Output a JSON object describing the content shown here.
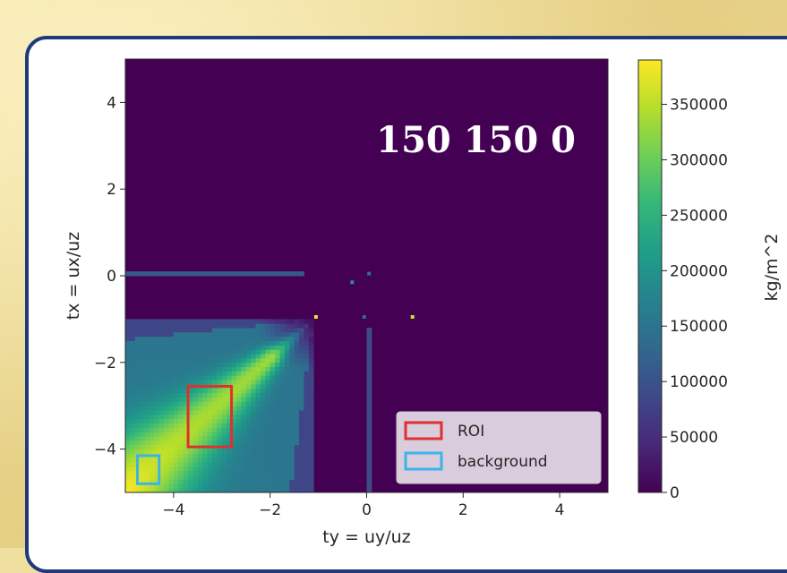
{
  "chart_data": {
    "type": "heatmap",
    "annotation": "150 150 0",
    "xlabel": "ty = uy/uz",
    "ylabel": "tx = ux/uz",
    "xlim": [
      -5,
      5
    ],
    "ylim": [
      -5,
      5
    ],
    "xticks": [
      -4,
      -2,
      0,
      2,
      4
    ],
    "xtick_labels": [
      "−4",
      "−2",
      "0",
      "2",
      "4"
    ],
    "yticks": [
      4,
      2,
      0,
      -2,
      -4
    ],
    "ytick_labels": [
      "4",
      "2",
      "0",
      "−2",
      "−4"
    ],
    "colorbar": {
      "label": "kg/m^2",
      "min": 0,
      "max": 390000,
      "ticks": [
        0,
        50000,
        100000,
        150000,
        200000,
        250000,
        300000,
        350000
      ],
      "tick_labels": [
        "0",
        "50000",
        "100000",
        "150000",
        "200000",
        "250000",
        "300000",
        "350000"
      ],
      "colormap": [
        "#440154",
        "#482878",
        "#3e4989",
        "#31688e",
        "#26828e",
        "#1f9e89",
        "#35b779",
        "#6ece58",
        "#b5de2b",
        "#fde725"
      ]
    },
    "legend": {
      "position": "lower-right",
      "entries": [
        {
          "label": "ROI",
          "color": "#e03030"
        },
        {
          "label": "background",
          "color": "#3db4e8"
        }
      ]
    },
    "roi_box": {
      "x": [
        -3.7,
        -2.8
      ],
      "y": [
        -3.95,
        -2.55
      ]
    },
    "background_box": {
      "x": [
        -4.75,
        -4.3
      ],
      "y": [
        -4.8,
        -4.15
      ]
    },
    "features": {
      "wedge_apex": [
        -1.1,
        -1.0
      ],
      "wedge_peak_value": 330000,
      "corner_peak_value": 370000,
      "line_tx0": {
        "tx": 0.05,
        "ty_from": -5,
        "ty_to": -1.3,
        "value": 110000
      },
      "line_ty0": {
        "ty": 0.05,
        "tx_from": -5,
        "tx_to": -1.2,
        "value": 90000
      },
      "points": [
        {
          "ty": -1.05,
          "tx": -0.95,
          "value": 380000
        },
        {
          "ty": 0.95,
          "tx": -0.95,
          "value": 360000
        },
        {
          "ty": -0.3,
          "tx": -0.15,
          "value": 200000
        },
        {
          "ty": 0.05,
          "tx": 0.05,
          "value": 150000
        },
        {
          "ty": -0.05,
          "tx": -0.95,
          "value": 140000
        }
      ]
    }
  }
}
